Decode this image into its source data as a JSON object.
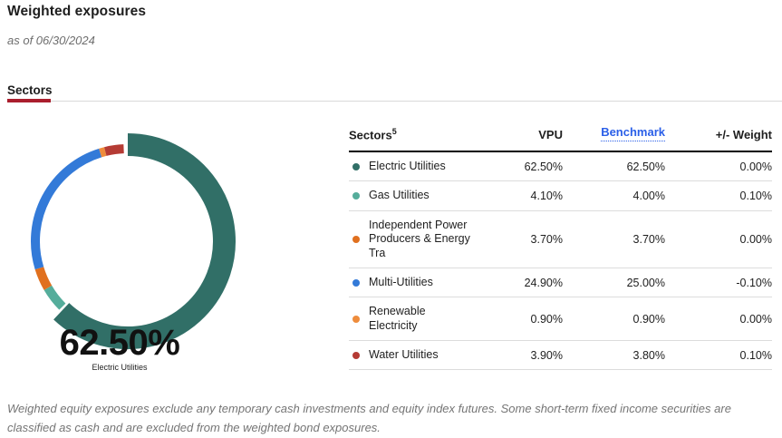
{
  "page": {
    "title": "Weighted exposures",
    "as_of": "as of 06/30/2024",
    "tab_label": "Sectors",
    "footer": "Weighted equity exposures exclude any temporary cash investments and equity index futures. Some short-term fixed income securities are classified as cash and are excluded from the weighted bond exposures."
  },
  "colors": {
    "accent_red": "#aa1e2d",
    "link_blue": "#2a5fe8",
    "divider_gray": "#d9d9d9",
    "text_gray": "#6e6e6e"
  },
  "chart_data": {
    "type": "donut",
    "title": "Weighted exposures",
    "as_of_date": "06/30/2024",
    "center_value": "62.50%",
    "center_label": "Electric Utilities",
    "highlight_index": 0,
    "start_angle_deg": 0,
    "legend_position": "none",
    "series": [
      {
        "name": "Electric Utilities",
        "value": 62.5,
        "color": "#316f67"
      },
      {
        "name": "Gas Utilities",
        "value": 4.1,
        "color": "#55ad9b"
      },
      {
        "name": "Independent Power Producers & Energy Tra",
        "value": 3.7,
        "color": "#e0701f"
      },
      {
        "name": "Multi-Utilities",
        "value": 24.9,
        "color": "#337ad8"
      },
      {
        "name": "Renewable Electricity",
        "value": 0.9,
        "color": "#ee8c3c"
      },
      {
        "name": "Water Utilities",
        "value": 3.9,
        "color": "#b53b34"
      }
    ]
  },
  "table": {
    "header": {
      "sectors": "Sectors",
      "footnote": "5",
      "vpu": "VPU",
      "benchmark": "Benchmark",
      "weight": "+/- Weight"
    },
    "rows": [
      {
        "name": "Electric Utilities",
        "vpu": "62.50%",
        "benchmark": "62.50%",
        "weight": "0.00%"
      },
      {
        "name": "Gas Utilities",
        "vpu": "4.10%",
        "benchmark": "4.00%",
        "weight": "0.10%"
      },
      {
        "name": "Independent Power Producers & Energy Tra",
        "vpu": "3.70%",
        "benchmark": "3.70%",
        "weight": "0.00%"
      },
      {
        "name": "Multi-Utilities",
        "vpu": "24.90%",
        "benchmark": "25.00%",
        "weight": "-0.10%"
      },
      {
        "name": "Renewable Electricity",
        "vpu": "0.90%",
        "benchmark": "0.90%",
        "weight": "0.00%"
      },
      {
        "name": "Water Utilities",
        "vpu": "3.90%",
        "benchmark": "3.80%",
        "weight": "0.10%"
      }
    ]
  }
}
